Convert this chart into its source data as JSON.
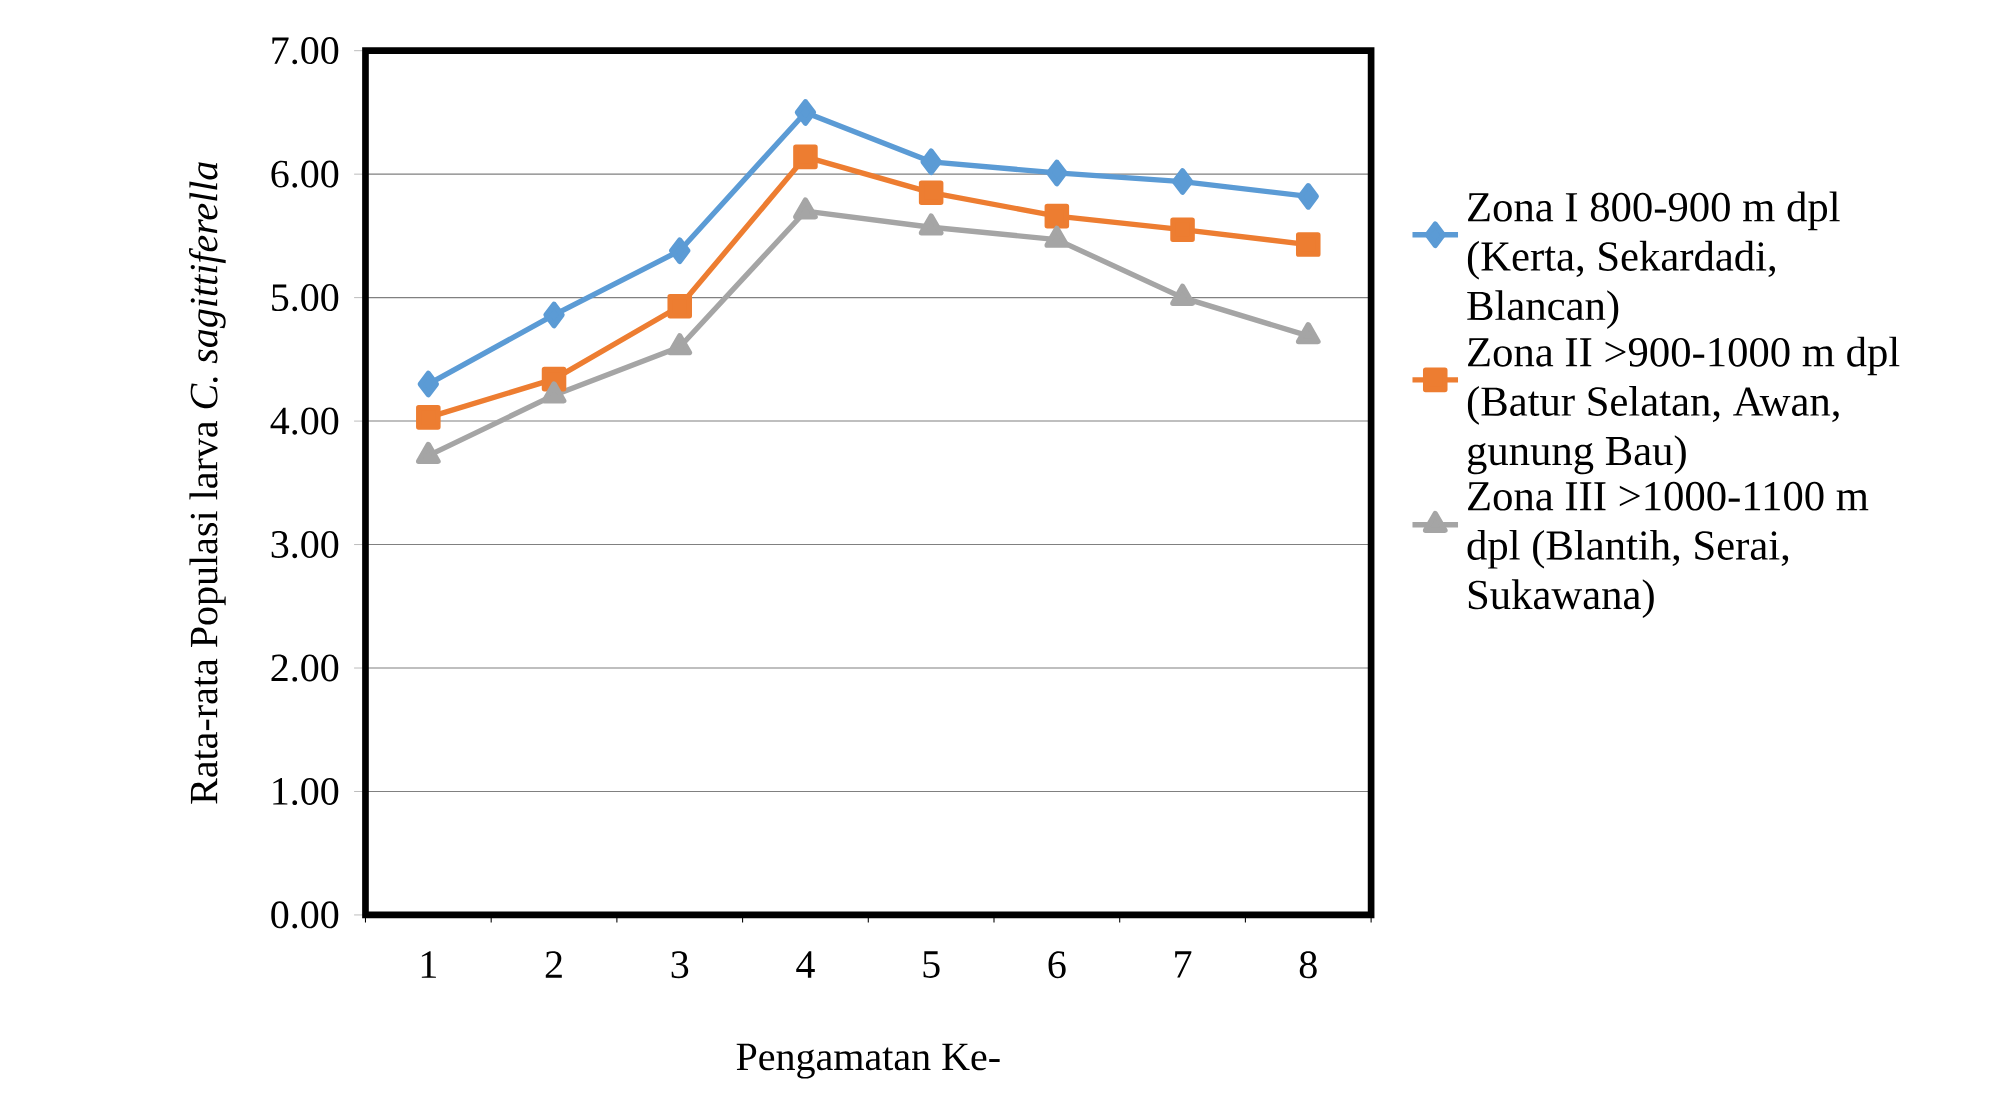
{
  "chart_data": {
    "type": "line",
    "xlabel": "Pengamatan Ke-",
    "ylabel": "Rata-rata Populasi larva *C. sagittiferella*",
    "categories": [
      "1",
      "2",
      "3",
      "4",
      "5",
      "6",
      "7",
      "8"
    ],
    "series": [
      {
        "name": "Zona I 800-900 m dpl (Kerta, Sekardadi, Blancan)",
        "color": "#5b9bd5",
        "marker": "diamond",
        "values": [
          4.3,
          4.86,
          5.38,
          6.5,
          6.1,
          6.01,
          5.94,
          5.82
        ]
      },
      {
        "name": "Zona II >900-1000 m dpl (Batur Selatan, Awan, gunung Bau)",
        "color": "#ed7d31",
        "marker": "square",
        "values": [
          4.03,
          4.34,
          4.93,
          6.14,
          5.85,
          5.66,
          5.55,
          5.43
        ]
      },
      {
        "name": "Zona III >1000-1100 m dpl (Blantih, Serai, Sukawana)",
        "color": "#a5a5a5",
        "marker": "triangle",
        "values": [
          3.72,
          4.21,
          4.6,
          5.7,
          5.57,
          5.47,
          5.0,
          4.69
        ]
      }
    ],
    "ylim": [
      0,
      7
    ],
    "yticks": [
      {
        "value": 0,
        "label": "0.00"
      },
      {
        "value": 1,
        "label": "1.00"
      },
      {
        "value": 2,
        "label": "2.00"
      },
      {
        "value": 3,
        "label": "3.00"
      },
      {
        "value": 4,
        "label": "4.00"
      },
      {
        "value": 5,
        "label": "5.00"
      },
      {
        "value": 6,
        "label": "6.00"
      },
      {
        "value": 7,
        "label": "7.00"
      }
    ],
    "grid": "y",
    "legend": "right"
  }
}
